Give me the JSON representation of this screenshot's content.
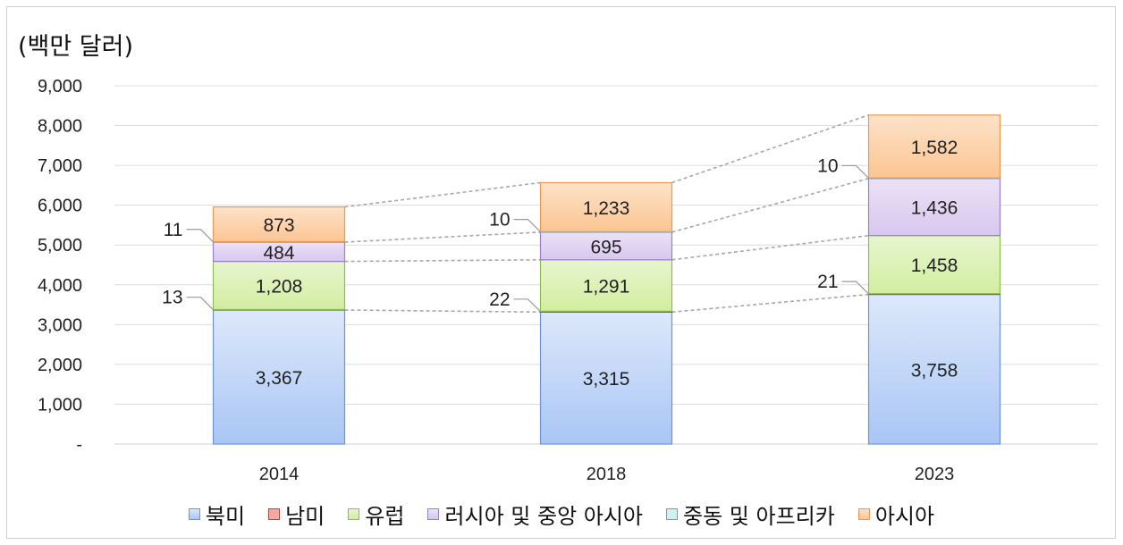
{
  "chart_data": {
    "type": "bar",
    "stacked": true,
    "unit_label": "(백만 달러)",
    "categories": [
      "2014",
      "2018",
      "2023"
    ],
    "ylim": [
      0,
      9000
    ],
    "yticks": [
      {
        "value": 0,
        "label": "-"
      },
      {
        "value": 1000,
        "label": "1,000"
      },
      {
        "value": 2000,
        "label": "2,000"
      },
      {
        "value": 3000,
        "label": "3,000"
      },
      {
        "value": 4000,
        "label": "4,000"
      },
      {
        "value": 5000,
        "label": "5,000"
      },
      {
        "value": 6000,
        "label": "6,000"
      },
      {
        "value": 7000,
        "label": "7,000"
      },
      {
        "value": 8000,
        "label": "8,000"
      },
      {
        "value": 9000,
        "label": "9,000"
      }
    ],
    "grid": true,
    "legend_position": "bottom",
    "series": [
      {
        "name": "북미",
        "values": [
          3367,
          3315,
          3758
        ],
        "labels": [
          "3,367",
          "3,315",
          "3,758"
        ],
        "color": "#a9c6f5",
        "color_top": "#dde8fb",
        "border": "#6f93d6"
      },
      {
        "name": "남미",
        "values": [
          13,
          22,
          21
        ],
        "labels": [
          "13",
          "22",
          "21"
        ],
        "color": "#f2a9a6",
        "border": "#b0473f"
      },
      {
        "name": "유럽",
        "values": [
          1208,
          1291,
          1458
        ],
        "labels": [
          "1,208",
          "1,291",
          "1,458"
        ],
        "color": "#e7f5d0",
        "color_top": "#d2ee9f",
        "border": "#8cbd4e"
      },
      {
        "name": "러시아 및 중앙 아시아",
        "values": [
          484,
          695,
          1436
        ],
        "labels": [
          "484",
          "695",
          "1,436"
        ],
        "color": "#ebe2f6",
        "color_top": "#d8c7ef",
        "border": "#9a80c4"
      },
      {
        "name": "중동 및 아프리카",
        "values": [
          11,
          10,
          10
        ],
        "labels": [
          "11",
          "10",
          "10"
        ],
        "color": "#d2eef6",
        "border": "#5aa8c3"
      },
      {
        "name": "아시아",
        "values": [
          873,
          1233,
          1582
        ],
        "labels": [
          "873",
          "1,233",
          "1,582"
        ],
        "color": "#fde2c8",
        "color_top": "#fbc593",
        "border": "#e69a55"
      }
    ]
  }
}
